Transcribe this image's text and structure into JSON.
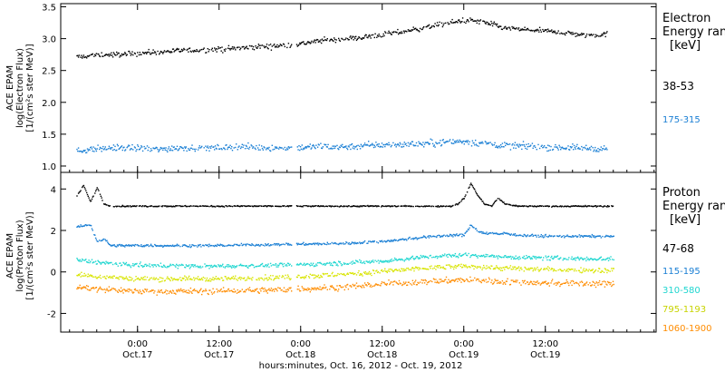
{
  "chart_data": [
    {
      "type": "scatter",
      "panel": "electron",
      "ylabel": [
        "ACE EPAM",
        "log(Electron Flux)",
        "[1/(cm²s ster MeV)]"
      ],
      "ylim": [
        0.9,
        3.55
      ],
      "yticks": [
        1.0,
        1.5,
        2.0,
        2.5,
        3.0,
        3.5
      ],
      "ytick_labels": [
        "1.0",
        "1.5",
        "2.0",
        "2.5",
        "3.0",
        "3.5"
      ],
      "legend_title": [
        "Electron",
        "Energy ran",
        "[keV]"
      ],
      "series": [
        {
          "name": "38-53",
          "color": "#000000",
          "x": [
            -9,
            -6,
            -3,
            0,
            3,
            6,
            9,
            12,
            15,
            18,
            21,
            24,
            27,
            30,
            33,
            36,
            39,
            42,
            45,
            48,
            51,
            54,
            57,
            60,
            63,
            66,
            69
          ],
          "y": [
            2.72,
            2.75,
            2.76,
            2.78,
            2.8,
            2.82,
            2.83,
            2.84,
            2.86,
            2.88,
            2.9,
            2.93,
            2.98,
            3.0,
            3.03,
            3.07,
            3.12,
            3.18,
            3.24,
            3.3,
            3.27,
            3.17,
            3.15,
            3.13,
            3.1,
            3.06,
            3.08
          ],
          "noise": 0.04
        },
        {
          "name": "175-315",
          "color": "#1a7fd4",
          "x": [
            -9,
            -6,
            -3,
            0,
            3,
            6,
            9,
            12,
            15,
            18,
            21,
            24,
            27,
            30,
            33,
            36,
            39,
            42,
            45,
            48,
            51,
            54,
            57,
            60,
            63,
            66,
            69
          ],
          "y": [
            1.25,
            1.28,
            1.3,
            1.29,
            1.27,
            1.3,
            1.29,
            1.3,
            1.31,
            1.3,
            1.29,
            1.3,
            1.32,
            1.31,
            1.33,
            1.34,
            1.35,
            1.36,
            1.38,
            1.4,
            1.36,
            1.33,
            1.32,
            1.31,
            1.3,
            1.29,
            1.28
          ],
          "noise": 0.05
        }
      ]
    },
    {
      "type": "scatter",
      "panel": "proton",
      "ylabel": [
        "ACE EPAM",
        "log(Proton Flux)",
        "[1/(cm²s ster MeV)]"
      ],
      "ylim": [
        -2.9,
        4.8
      ],
      "yticks": [
        -2,
        0,
        2,
        4
      ],
      "ytick_labels": [
        "-2",
        "0",
        "2",
        "4"
      ],
      "legend_title": [
        "Proton",
        "Energy ran",
        "[keV]"
      ],
      "series": [
        {
          "name": "47-68",
          "color": "#000000",
          "x": [
            -9,
            -8,
            -7,
            -6,
            -5,
            -4,
            0,
            10,
            20,
            30,
            40,
            46,
            47,
            48,
            49,
            50,
            51,
            52,
            53,
            54,
            56,
            60,
            70
          ],
          "y": [
            3.7,
            4.2,
            3.4,
            4.1,
            3.3,
            3.2,
            3.2,
            3.2,
            3.2,
            3.2,
            3.2,
            3.2,
            3.3,
            3.6,
            4.3,
            3.7,
            3.3,
            3.2,
            3.6,
            3.3,
            3.2,
            3.2,
            3.2
          ],
          "noise": 0.03
        },
        {
          "name": "115-195",
          "color": "#1a7fd4",
          "x": [
            -9,
            -7,
            -6,
            -5,
            -4,
            0,
            10,
            20,
            30,
            36,
            42,
            46,
            48,
            49,
            50,
            51,
            52,
            53,
            54,
            56,
            60,
            70
          ],
          "y": [
            2.2,
            2.3,
            1.5,
            1.6,
            1.3,
            1.3,
            1.3,
            1.35,
            1.4,
            1.5,
            1.7,
            1.8,
            1.8,
            2.3,
            2.0,
            1.9,
            1.9,
            1.85,
            1.9,
            1.8,
            1.75,
            1.75
          ],
          "noise": 0.06
        },
        {
          "name": "310-580",
          "color": "#1fd6d0",
          "x": [
            -9,
            -6,
            -3,
            0,
            10,
            20,
            30,
            36,
            42,
            48,
            52,
            54,
            60,
            70
          ],
          "y": [
            0.6,
            0.5,
            0.4,
            0.35,
            0.3,
            0.35,
            0.45,
            0.55,
            0.75,
            0.85,
            0.8,
            0.75,
            0.7,
            0.65
          ],
          "noise": 0.1
        },
        {
          "name": "795-1193",
          "color": "#d8e400",
          "x": [
            -9,
            -6,
            -3,
            0,
            10,
            20,
            30,
            36,
            42,
            48,
            52,
            54,
            60,
            70
          ],
          "y": [
            -0.1,
            -0.2,
            -0.25,
            -0.3,
            -0.3,
            -0.25,
            -0.1,
            0.05,
            0.2,
            0.3,
            0.25,
            0.2,
            0.15,
            0.1
          ],
          "noise": 0.12
        },
        {
          "name": "1060-1900",
          "color": "#ff8c00",
          "x": [
            -9,
            -6,
            -3,
            0,
            10,
            20,
            30,
            36,
            42,
            48,
            52,
            54,
            60,
            70
          ],
          "y": [
            -0.7,
            -0.8,
            -0.85,
            -0.9,
            -0.9,
            -0.85,
            -0.7,
            -0.55,
            -0.45,
            -0.35,
            -0.4,
            -0.45,
            -0.5,
            -0.55
          ],
          "noise": 0.14
        }
      ]
    }
  ],
  "x_axis": {
    "range_hours": [
      -11.3,
      76.3
    ],
    "ticks": [
      {
        "h": 0,
        "time": "0:00",
        "date": "Oct.17"
      },
      {
        "h": 12,
        "time": "12:00",
        "date": "Oct.17"
      },
      {
        "h": 24,
        "time": "0:00",
        "date": "Oct.18"
      },
      {
        "h": 36,
        "time": "12:00",
        "date": "Oct.18"
      },
      {
        "h": 48,
        "time": "0:00",
        "date": "Oct.19"
      },
      {
        "h": 60,
        "time": "12:00",
        "date": "Oct.19"
      }
    ],
    "label": "hours:minutes, Oct. 16, 2012 - Oct. 19, 2012"
  }
}
